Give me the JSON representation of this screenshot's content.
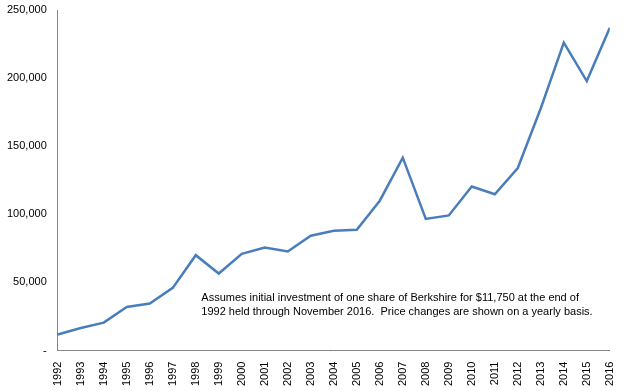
{
  "chart_data": {
    "type": "line",
    "categories": [
      "1992",
      "1993",
      "1994",
      "1995",
      "1996",
      "1997",
      "1998",
      "1999",
      "2000",
      "2001",
      "2002",
      "2003",
      "2004",
      "2005",
      "2006",
      "2007",
      "2008",
      "2009",
      "2010",
      "2011",
      "2012",
      "2013",
      "2014",
      "2015",
      "2016"
    ],
    "values": [
      11750,
      16500,
      20500,
      32000,
      34500,
      46000,
      70000,
      56500,
      71000,
      75600,
      72750,
      84250,
      88000,
      88600,
      110000,
      141600,
      96600,
      99200,
      120450,
      114750,
      134000,
      177900,
      226000,
      197800,
      237000
    ],
    "color": "#4a7ebb",
    "ylim": [
      0,
      250000
    ],
    "yticks": [
      {
        "value": 0,
        "label": "-"
      },
      {
        "value": 50000,
        "label": "50,000"
      },
      {
        "value": 100000,
        "label": "100,000"
      },
      {
        "value": 150000,
        "label": "150,000"
      },
      {
        "value": 200000,
        "label": "200,000"
      },
      {
        "value": 250000,
        "label": "250,000"
      }
    ],
    "grid": false,
    "annotation": "Assumes initial investment of one share of Berkshire for $11,750 at the end of 1992 held through November 2016.  Price changes are shown on a yearly basis."
  }
}
